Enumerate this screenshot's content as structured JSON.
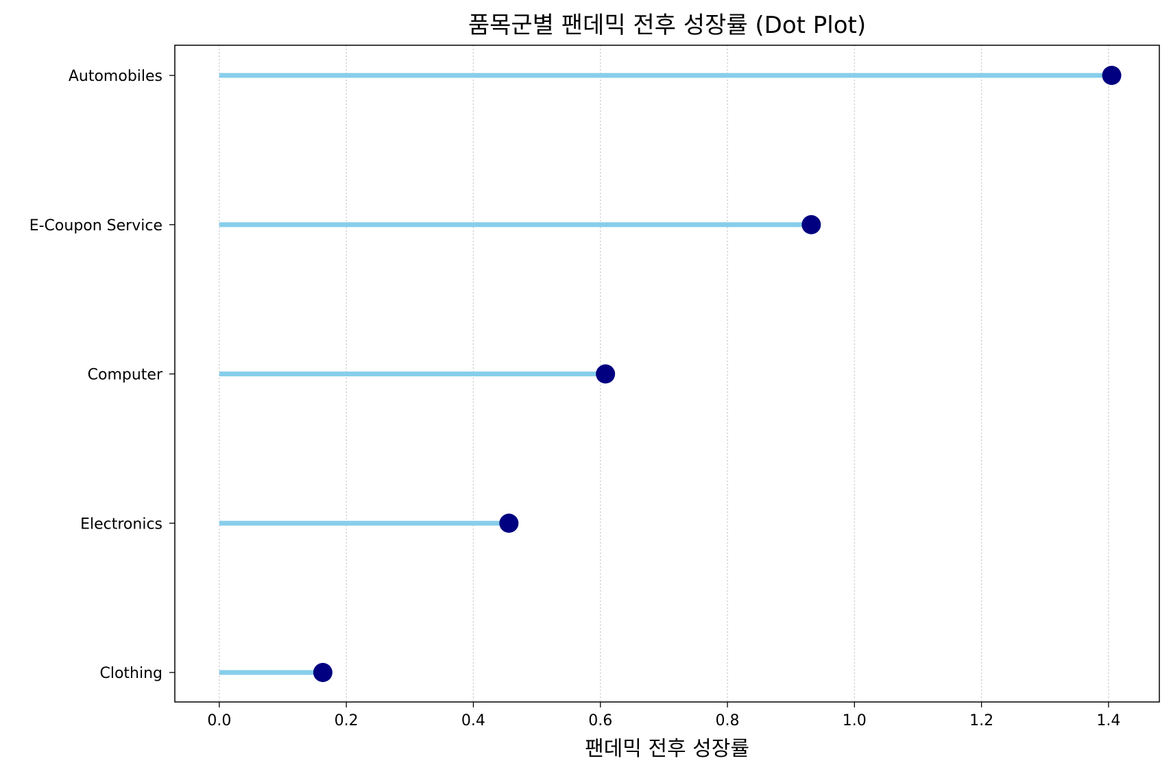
{
  "chart_data": {
    "type": "dot",
    "title": "품목군별 팬데믹 전후 성장률 (Dot Plot)",
    "xlabel": "팬데믹 전후 성장률",
    "ylabel": "",
    "categories": [
      "Automobiles",
      "E-Coupon Service",
      "Computer",
      "Electronics",
      "Clothing"
    ],
    "values": [
      1.405,
      0.932,
      0.608,
      0.456,
      0.163
    ],
    "xlim": [
      -0.07,
      1.48
    ],
    "xticks": [
      "0.0",
      "0.2",
      "0.4",
      "0.6",
      "0.8",
      "1.0",
      "1.2",
      "1.4"
    ],
    "grid": "vertical dotted",
    "colors": {
      "stem": "#87ceeb",
      "dot": "#000080",
      "grid": "#c8c8c8",
      "axis": "#000000"
    }
  }
}
